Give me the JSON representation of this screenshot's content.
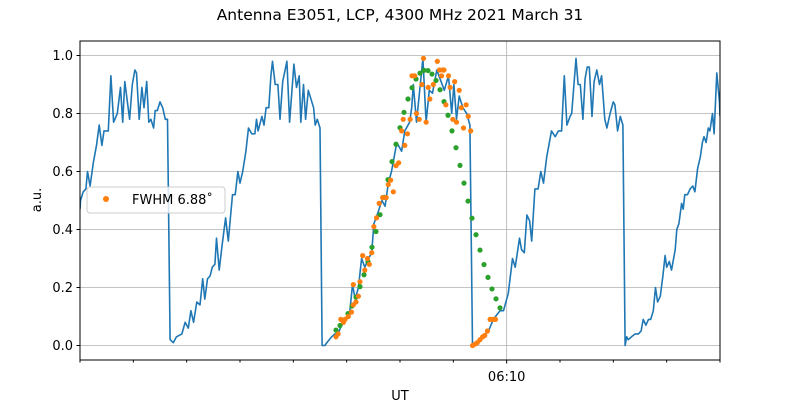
{
  "chart_data": {
    "type": "line",
    "title": "Antenna E3051, LCP, 4300 MHz 2021 March 31",
    "xlabel": "UT",
    "ylabel": "a.u.",
    "x_units": "minutes after 06:00 UT",
    "xlim": [
      2,
      14
    ],
    "ylim": [
      -0.05,
      1.05
    ],
    "grid": true,
    "yticks": [
      0.0,
      0.2,
      0.4,
      0.6,
      0.8,
      1.0
    ],
    "ytick_labels": [
      "0.0",
      "0.2",
      "0.4",
      "0.6",
      "0.8",
      "1.0"
    ],
    "xticks_major": [
      10
    ],
    "xtick_labels": [
      "06:10"
    ],
    "xticks_minor": [
      2,
      3,
      4,
      5,
      6,
      7,
      8,
      9,
      11,
      12,
      13,
      14
    ],
    "legend": {
      "placement": "center-left",
      "entries": [
        {
          "label": "FWHM 6.88˚",
          "series": "measured"
        }
      ]
    },
    "colors": {
      "signal": "#1f77b4",
      "measured": "#ff7f0e",
      "fit": "#2ca02c",
      "grid": "#b0b0b0"
    },
    "series": [
      {
        "name": "signal",
        "kind": "line",
        "points": [
          [
            2.0,
            0.47
          ],
          [
            2.01,
            0.5
          ],
          [
            2.06,
            0.53
          ],
          [
            2.11,
            0.54
          ],
          [
            2.14,
            0.6
          ],
          [
            2.19,
            0.55
          ],
          [
            2.25,
            0.63
          ],
          [
            2.31,
            0.69
          ],
          [
            2.36,
            0.76
          ],
          [
            2.41,
            0.69
          ],
          [
            2.45,
            0.74
          ],
          [
            2.53,
            0.74
          ],
          [
            2.58,
            0.93
          ],
          [
            2.63,
            0.77
          ],
          [
            2.7,
            0.8
          ],
          [
            2.76,
            0.89
          ],
          [
            2.8,
            0.77
          ],
          [
            2.84,
            0.91
          ],
          [
            2.93,
            0.78
          ],
          [
            2.98,
            0.9
          ],
          [
            3.03,
            0.95
          ],
          [
            3.06,
            0.94
          ],
          [
            3.11,
            0.78
          ],
          [
            3.16,
            0.89
          ],
          [
            3.2,
            0.82
          ],
          [
            3.25,
            0.91
          ],
          [
            3.29,
            0.77
          ],
          [
            3.33,
            0.78
          ],
          [
            3.38,
            0.75
          ],
          [
            3.41,
            0.81
          ],
          [
            3.45,
            0.81
          ],
          [
            3.5,
            0.84
          ],
          [
            3.55,
            0.82
          ],
          [
            3.6,
            0.78
          ],
          [
            3.64,
            0.78
          ],
          [
            3.69,
            0.02
          ],
          [
            3.75,
            0.01
          ],
          [
            3.81,
            0.03
          ],
          [
            3.91,
            0.04
          ],
          [
            3.97,
            0.08
          ],
          [
            4.03,
            0.06
          ],
          [
            4.08,
            0.12
          ],
          [
            4.13,
            0.08
          ],
          [
            4.19,
            0.15
          ],
          [
            4.25,
            0.14
          ],
          [
            4.3,
            0.23
          ],
          [
            4.34,
            0.16
          ],
          [
            4.39,
            0.23
          ],
          [
            4.44,
            0.24
          ],
          [
            4.48,
            0.27
          ],
          [
            4.53,
            0.28
          ],
          [
            4.56,
            0.37
          ],
          [
            4.61,
            0.26
          ],
          [
            4.66,
            0.34
          ],
          [
            4.73,
            0.44
          ],
          [
            4.78,
            0.36
          ],
          [
            4.86,
            0.52
          ],
          [
            4.91,
            0.52
          ],
          [
            4.96,
            0.6
          ],
          [
            5.0,
            0.56
          ],
          [
            5.05,
            0.6
          ],
          [
            5.11,
            0.67
          ],
          [
            5.16,
            0.75
          ],
          [
            5.22,
            0.73
          ],
          [
            5.28,
            0.73
          ],
          [
            5.31,
            0.78
          ],
          [
            5.34,
            0.74
          ],
          [
            5.41,
            0.79
          ],
          [
            5.45,
            0.76
          ],
          [
            5.49,
            0.82
          ],
          [
            5.54,
            0.82
          ],
          [
            5.58,
            0.93
          ],
          [
            5.61,
            0.98
          ],
          [
            5.66,
            0.9
          ],
          [
            5.71,
            0.9
          ],
          [
            5.75,
            0.78
          ],
          [
            5.8,
            0.91
          ],
          [
            5.88,
            0.98
          ],
          [
            5.93,
            0.77
          ],
          [
            6.01,
            0.97
          ],
          [
            6.06,
            0.89
          ],
          [
            6.11,
            0.93
          ],
          [
            6.14,
            0.77
          ],
          [
            6.19,
            0.9
          ],
          [
            6.23,
            0.78
          ],
          [
            6.28,
            0.88
          ],
          [
            6.38,
            0.82
          ],
          [
            6.41,
            0.76
          ],
          [
            6.45,
            0.78
          ],
          [
            6.5,
            0.75
          ],
          [
            6.54,
            0.0
          ],
          [
            6.59,
            0.0
          ],
          [
            6.63,
            0.01
          ],
          [
            6.72,
            0.03
          ],
          [
            6.78,
            0.04
          ],
          [
            6.84,
            0.04
          ],
          [
            6.88,
            0.06
          ],
          [
            7.0,
            0.1
          ],
          [
            7.06,
            0.12
          ],
          [
            7.11,
            0.21
          ],
          [
            7.16,
            0.16
          ],
          [
            7.22,
            0.2
          ],
          [
            7.28,
            0.3
          ],
          [
            7.34,
            0.27
          ],
          [
            7.41,
            0.3
          ],
          [
            7.47,
            0.32
          ],
          [
            7.51,
            0.42
          ],
          [
            7.59,
            0.46
          ],
          [
            7.66,
            0.5
          ],
          [
            7.72,
            0.48
          ],
          [
            7.78,
            0.56
          ],
          [
            7.84,
            0.6
          ],
          [
            7.94,
            0.7
          ],
          [
            8.03,
            0.67
          ],
          [
            8.09,
            0.74
          ],
          [
            8.18,
            0.77
          ],
          [
            8.22,
            0.82
          ],
          [
            8.25,
            0.9
          ],
          [
            8.31,
            0.77
          ],
          [
            8.43,
            0.99
          ],
          [
            8.49,
            0.77
          ],
          [
            8.55,
            0.88
          ],
          [
            8.61,
            0.87
          ],
          [
            8.69,
            0.95
          ],
          [
            8.75,
            0.92
          ],
          [
            8.83,
            0.88
          ],
          [
            8.91,
            0.93
          ],
          [
            8.97,
            0.8
          ],
          [
            9.01,
            0.9
          ],
          [
            9.06,
            0.78
          ],
          [
            9.11,
            0.86
          ],
          [
            9.18,
            0.82
          ],
          [
            9.25,
            0.8
          ],
          [
            9.31,
            0.76
          ],
          [
            9.36,
            0.0
          ],
          [
            9.44,
            0.01
          ],
          [
            9.56,
            0.03
          ],
          [
            9.66,
            0.05
          ],
          [
            9.75,
            0.09
          ],
          [
            9.875,
            0.12
          ],
          [
            9.94,
            0.12
          ],
          [
            10.03,
            0.18
          ],
          [
            10.11,
            0.3
          ],
          [
            10.16,
            0.27
          ],
          [
            10.24,
            0.37
          ],
          [
            10.28,
            0.33
          ],
          [
            10.33,
            0.32
          ],
          [
            10.38,
            0.45
          ],
          [
            10.43,
            0.43
          ],
          [
            10.47,
            0.36
          ],
          [
            10.53,
            0.54
          ],
          [
            10.59,
            0.54
          ],
          [
            10.64,
            0.6
          ],
          [
            10.69,
            0.56
          ],
          [
            10.75,
            0.65
          ],
          [
            10.84,
            0.74
          ],
          [
            10.91,
            0.72
          ],
          [
            10.97,
            0.74
          ],
          [
            11.03,
            0.74
          ],
          [
            11.08,
            0.93
          ],
          [
            11.13,
            0.76
          ],
          [
            11.19,
            0.79
          ],
          [
            11.22,
            0.8
          ],
          [
            11.3,
            0.99
          ],
          [
            11.34,
            0.9
          ],
          [
            11.38,
            0.9
          ],
          [
            11.43,
            0.78
          ],
          [
            11.47,
            0.92
          ],
          [
            11.51,
            0.96
          ],
          [
            11.55,
            0.96
          ],
          [
            11.6,
            0.79
          ],
          [
            11.64,
            0.91
          ],
          [
            11.69,
            0.95
          ],
          [
            11.74,
            0.9
          ],
          [
            11.78,
            0.93
          ],
          [
            11.84,
            0.78
          ],
          [
            11.88,
            0.75
          ],
          [
            11.94,
            0.8
          ],
          [
            12.0,
            0.84
          ],
          [
            12.03,
            0.83
          ],
          [
            12.08,
            0.74
          ],
          [
            12.13,
            0.79
          ],
          [
            12.18,
            0.76
          ],
          [
            12.22,
            0.0
          ],
          [
            12.25,
            0.03
          ],
          [
            12.28,
            0.02
          ],
          [
            12.34,
            0.03
          ],
          [
            12.41,
            0.04
          ],
          [
            12.47,
            0.04
          ],
          [
            12.52,
            0.05
          ],
          [
            12.56,
            0.09
          ],
          [
            12.61,
            0.07
          ],
          [
            12.66,
            0.09
          ],
          [
            12.7,
            0.09
          ],
          [
            12.75,
            0.12
          ],
          [
            12.79,
            0.2
          ],
          [
            12.83,
            0.15
          ],
          [
            12.88,
            0.17
          ],
          [
            12.93,
            0.24
          ],
          [
            12.97,
            0.31
          ],
          [
            13.0,
            0.27
          ],
          [
            13.05,
            0.29
          ],
          [
            13.09,
            0.26
          ],
          [
            13.16,
            0.33
          ],
          [
            13.19,
            0.4
          ],
          [
            13.23,
            0.42
          ],
          [
            13.28,
            0.49
          ],
          [
            13.31,
            0.47
          ],
          [
            13.34,
            0.52
          ],
          [
            13.39,
            0.52
          ],
          [
            13.44,
            0.54
          ],
          [
            13.49,
            0.55
          ],
          [
            13.53,
            0.53
          ],
          [
            13.58,
            0.61
          ],
          [
            13.63,
            0.65
          ],
          [
            13.67,
            0.7
          ],
          [
            13.7,
            0.72
          ],
          [
            13.74,
            0.7
          ],
          [
            13.78,
            0.75
          ],
          [
            13.81,
            0.74
          ],
          [
            13.86,
            0.8
          ],
          [
            13.89,
            0.73
          ],
          [
            13.94,
            0.94
          ],
          [
            13.99,
            0.84
          ],
          [
            14.0,
            0.79
          ]
        ]
      },
      {
        "name": "measured",
        "kind": "scatter",
        "x": [
          6.8,
          6.84,
          6.89,
          6.94,
          6.97,
          7.03,
          7.09,
          7.125,
          7.125,
          7.175,
          7.22,
          7.25,
          7.3,
          7.34,
          7.39,
          7.425,
          7.47,
          7.51,
          7.56,
          7.61,
          7.675,
          7.74,
          7.78,
          7.825,
          7.875,
          7.925,
          7.975,
          8.03,
          8.06,
          8.09,
          8.14,
          8.19,
          8.225,
          8.275,
          8.31,
          8.36,
          8.41,
          8.44,
          8.49,
          8.53,
          8.56,
          8.625,
          8.7,
          8.74,
          8.78,
          8.8,
          8.825,
          8.86,
          8.91,
          8.94,
          8.99,
          9.025,
          9.06,
          9.11,
          9.15,
          9.19,
          9.24,
          9.28,
          9.325,
          9.36,
          9.41,
          9.45,
          9.5,
          9.55,
          9.59,
          9.64,
          9.69,
          9.74,
          9.79
        ],
        "y": [
          0.03,
          0.04,
          0.09,
          0.08,
          0.09,
          0.1,
          0.115,
          0.14,
          0.21,
          0.15,
          0.17,
          0.22,
          0.31,
          0.26,
          0.3,
          0.28,
          0.32,
          0.41,
          0.44,
          0.49,
          0.51,
          0.51,
          0.555,
          0.57,
          0.53,
          0.62,
          0.63,
          0.74,
          0.78,
          0.69,
          0.73,
          0.78,
          0.93,
          0.93,
          0.8,
          0.78,
          0.9,
          0.99,
          0.77,
          0.89,
          0.85,
          0.9,
          0.98,
          0.95,
          0.93,
          0.95,
          0.95,
          0.83,
          0.93,
          0.89,
          0.78,
          0.91,
          0.77,
          0.88,
          0.82,
          0.75,
          0.83,
          0.79,
          0.74,
          0.0,
          0.005,
          0.01,
          0.02,
          0.03,
          0.035,
          0.05,
          0.09,
          0.09,
          0.09
        ]
      },
      {
        "name": "fit",
        "kind": "scatter",
        "x": [
          6.8,
          6.875,
          6.95,
          7.025,
          7.1,
          7.175,
          7.25,
          7.325,
          7.4,
          7.475,
          7.55,
          7.625,
          7.7,
          7.775,
          7.85,
          7.925,
          8.0,
          8.075,
          8.15,
          8.225,
          8.3,
          8.375,
          8.45,
          8.525,
          8.6,
          8.675,
          8.75,
          8.825,
          8.9,
          8.975,
          9.05,
          9.125,
          9.2,
          9.275,
          9.35,
          9.425,
          9.5,
          9.575,
          9.65,
          9.725,
          9.8,
          9.875
        ],
        "y": [
          0.053,
          0.069,
          0.087,
          0.11,
          0.136,
          0.167,
          0.203,
          0.244,
          0.289,
          0.339,
          0.393,
          0.451,
          0.511,
          0.572,
          0.634,
          0.694,
          0.751,
          0.804,
          0.85,
          0.889,
          0.919,
          0.939,
          0.949,
          0.948,
          0.936,
          0.914,
          0.882,
          0.841,
          0.794,
          0.74,
          0.682,
          0.621,
          0.56,
          0.498,
          0.439,
          0.382,
          0.329,
          0.279,
          0.235,
          0.195,
          0.161,
          0.13
        ]
      }
    ]
  }
}
